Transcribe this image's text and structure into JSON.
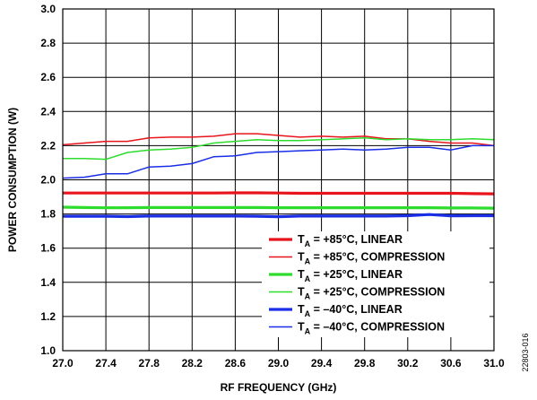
{
  "chart_data": {
    "type": "line",
    "xlabel": "RF FREQUENCY (GHz)",
    "ylabel": "POWER CONSUMPTION (W)",
    "xlim": [
      27.0,
      31.0
    ],
    "ylim": [
      1.0,
      3.0
    ],
    "x_ticks": [
      "27.0",
      "27.4",
      "27.8",
      "28.2",
      "28.6",
      "29.0",
      "29.4",
      "29.8",
      "30.2",
      "30.6",
      "31.0"
    ],
    "y_ticks": [
      "1.0",
      "1.2",
      "1.4",
      "1.6",
      "1.8",
      "2.0",
      "2.2",
      "2.4",
      "2.6",
      "2.8",
      "3.0"
    ],
    "grid": true,
    "legend_position": "bottom-right",
    "series": [
      {
        "name_sub": "A",
        "name_rest": " = +85°C, LINEAR",
        "color": "#e8141c",
        "thick": true,
        "x": [
          27.0,
          27.2,
          27.4,
          27.6,
          27.8,
          28.0,
          28.2,
          28.4,
          28.6,
          28.8,
          29.0,
          29.2,
          29.4,
          29.6,
          29.8,
          30.0,
          30.2,
          30.4,
          30.6,
          30.8,
          31.0
        ],
        "values": [
          1.923,
          1.923,
          1.923,
          1.923,
          1.923,
          1.923,
          1.923,
          1.923,
          1.924,
          1.924,
          1.923,
          1.921,
          1.921,
          1.921,
          1.921,
          1.921,
          1.921,
          1.921,
          1.921,
          1.919,
          1.918
        ]
      },
      {
        "name_sub": "A",
        "name_rest": " = +85°C, COMPRESSION",
        "color": "#e8141c",
        "thick": false,
        "x": [
          27.0,
          27.2,
          27.4,
          27.6,
          27.8,
          28.0,
          28.2,
          28.4,
          28.6,
          28.8,
          29.0,
          29.2,
          29.4,
          29.6,
          29.8,
          30.0,
          30.2,
          30.4,
          30.6,
          30.8,
          31.0
        ],
        "values": [
          2.205,
          2.215,
          2.225,
          2.225,
          2.245,
          2.25,
          2.25,
          2.255,
          2.27,
          2.27,
          2.26,
          2.25,
          2.255,
          2.25,
          2.255,
          2.24,
          2.24,
          2.225,
          2.215,
          2.215,
          2.2
        ]
      },
      {
        "name_sub": "A",
        "name_rest": " = +25°C, LINEAR",
        "color": "#2ddc2d",
        "thick": true,
        "x": [
          27.0,
          27.2,
          27.4,
          27.6,
          27.8,
          28.0,
          28.2,
          28.4,
          28.6,
          28.8,
          29.0,
          29.2,
          29.4,
          29.6,
          29.8,
          30.0,
          30.2,
          30.4,
          30.6,
          30.8,
          31.0
        ],
        "values": [
          1.84,
          1.838,
          1.836,
          1.837,
          1.838,
          1.838,
          1.838,
          1.838,
          1.838,
          1.838,
          1.837,
          1.837,
          1.837,
          1.837,
          1.837,
          1.837,
          1.837,
          1.837,
          1.835,
          1.835,
          1.834
        ]
      },
      {
        "name_sub": "A",
        "name_rest": " = +25°C, COMPRESSION",
        "color": "#2ddc2d",
        "thick": false,
        "x": [
          27.0,
          27.2,
          27.4,
          27.6,
          27.8,
          28.0,
          28.2,
          28.4,
          28.6,
          28.8,
          29.0,
          29.2,
          29.4,
          29.6,
          29.8,
          30.0,
          30.2,
          30.4,
          30.6,
          30.8,
          31.0
        ],
        "values": [
          2.125,
          2.125,
          2.12,
          2.16,
          2.175,
          2.18,
          2.19,
          2.215,
          2.225,
          2.235,
          2.23,
          2.23,
          2.235,
          2.24,
          2.245,
          2.235,
          2.24,
          2.235,
          2.235,
          2.24,
          2.235
        ]
      },
      {
        "name_sub": "A",
        "name_rest": " = –40°C, LINEAR",
        "color": "#1a2ee6",
        "thick": true,
        "x": [
          27.0,
          27.2,
          27.4,
          27.6,
          27.8,
          28.0,
          28.2,
          28.4,
          28.6,
          28.8,
          29.0,
          29.2,
          29.4,
          29.6,
          29.8,
          30.0,
          30.2,
          30.4,
          30.6,
          30.8,
          31.0
        ],
        "values": [
          1.787,
          1.787,
          1.787,
          1.785,
          1.788,
          1.788,
          1.788,
          1.788,
          1.788,
          1.787,
          1.784,
          1.788,
          1.788,
          1.788,
          1.788,
          1.788,
          1.79,
          1.797,
          1.789,
          1.79,
          1.79
        ]
      },
      {
        "name_sub": "A",
        "name_rest": " = –40°C, COMPRESSION",
        "color": "#1a2ee6",
        "thick": false,
        "x": [
          27.0,
          27.2,
          27.4,
          27.6,
          27.8,
          28.0,
          28.2,
          28.4,
          28.6,
          28.8,
          29.0,
          29.2,
          29.4,
          29.6,
          29.8,
          30.0,
          30.2,
          30.4,
          30.6,
          30.8,
          31.0
        ],
        "values": [
          2.01,
          2.015,
          2.035,
          2.035,
          2.075,
          2.08,
          2.095,
          2.135,
          2.14,
          2.16,
          2.165,
          2.17,
          2.175,
          2.18,
          2.175,
          2.18,
          2.19,
          2.19,
          2.175,
          2.2,
          2.2
        ]
      }
    ],
    "legend_prefix": "T",
    "figure_id": "22803-016"
  }
}
